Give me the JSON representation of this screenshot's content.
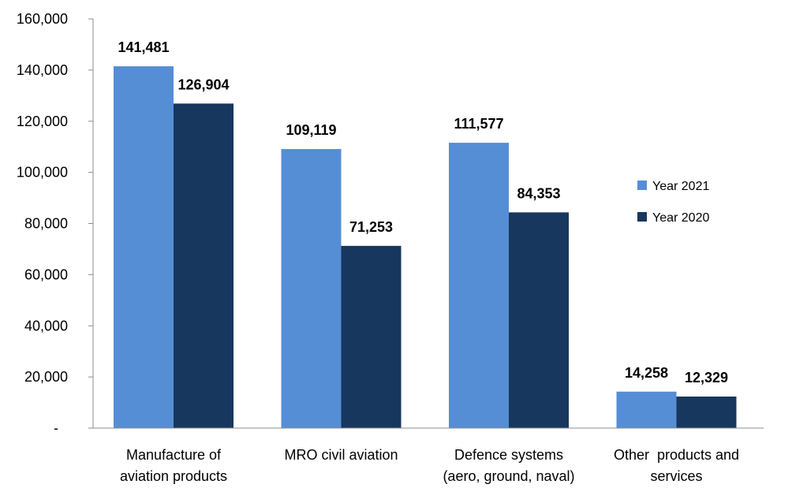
{
  "chart_data": {
    "type": "bar",
    "categories": [
      [
        "Manufacture of",
        "aviation products"
      ],
      [
        "MRO civil aviation"
      ],
      [
        "Defence systems",
        "(aero, ground, naval)"
      ],
      [
        "Other  products and",
        "services"
      ]
    ],
    "series": [
      {
        "name": "Year 2021",
        "color": "#558ED5",
        "values": [
          141481,
          109119,
          111577,
          14258
        ],
        "labels": [
          "141,481",
          "109,119",
          "111,577",
          "14,258"
        ]
      },
      {
        "name": "Year 2020",
        "color": "#17375E",
        "values": [
          126904,
          71253,
          84353,
          12329
        ],
        "labels": [
          "126,904",
          "71,253",
          "84,353",
          "12,329"
        ]
      }
    ],
    "ylim": [
      0,
      160000
    ],
    "yticks": [
      0,
      20000,
      40000,
      60000,
      80000,
      100000,
      120000,
      140000,
      160000
    ],
    "ytick_labels": [
      "-",
      "20,000",
      "40,000",
      "60,000",
      "80,000",
      "100,000",
      "120,000",
      "140,000",
      "160,000"
    ],
    "legend_position": "right",
    "grid": false
  }
}
